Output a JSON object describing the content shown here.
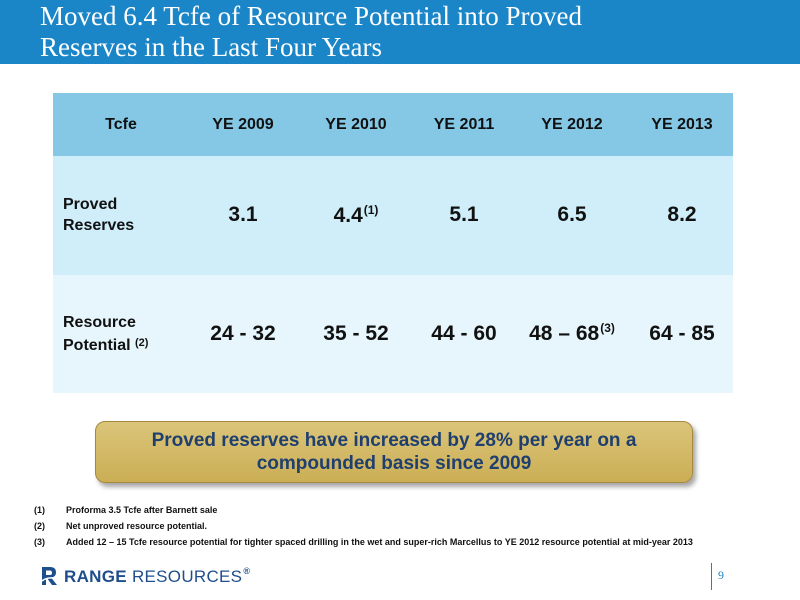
{
  "title": {
    "line1": "Moved 6.4 Tcfe of Resource Potential into Proved",
    "line2": "Reserves in the Last Four Years"
  },
  "table": {
    "headers": [
      "Tcfe",
      "YE 2009",
      "YE 2010",
      "YE 2011",
      "YE 2012",
      "YE 2013"
    ],
    "proved": {
      "label_line1": "Proved",
      "label_line2": "Reserves",
      "values": [
        "3.1",
        "4.4",
        "5.1",
        "6.5",
        "8.2"
      ],
      "note_ye2010": "(1)"
    },
    "resource": {
      "label_line1": "Resource",
      "label_line2": "Potential",
      "label_note": "(2)",
      "values": [
        "24 - 32",
        "35 - 52",
        "44 - 60",
        "48 – 68",
        "64 - 85"
      ],
      "note_ye2012": "(3)"
    }
  },
  "callout": {
    "text": "Proved reserves have increased by 28% per year on a compounded basis since 2009"
  },
  "footnotes": [
    {
      "num": "(1)",
      "text": "Proforma 3.5 Tcfe after Barnett sale"
    },
    {
      "num": "(2)",
      "text": "Net unproved resource potential."
    },
    {
      "num": "(3)",
      "text": "Added 12 – 15 Tcfe resource potential for tighter spaced drilling in the wet and super-rich Marcellus to YE 2012 resource potential at mid-year 2013"
    }
  ],
  "footer": {
    "logo_bold": "RANGE",
    "logo_light": "RESOURCES",
    "logo_reg": "®",
    "page_number": "9"
  },
  "colors": {
    "title_bar": "#1a86c8",
    "table_header": "#84c8e6",
    "table_row_1": "#cfeefa",
    "table_row_2": "#e6f6fc",
    "callout_fill": "#cbae55",
    "callout_text": "#1f3f6e",
    "logo": "#1f4e8c"
  },
  "icons": {
    "logo_mark": "range-resources-logo-icon"
  }
}
